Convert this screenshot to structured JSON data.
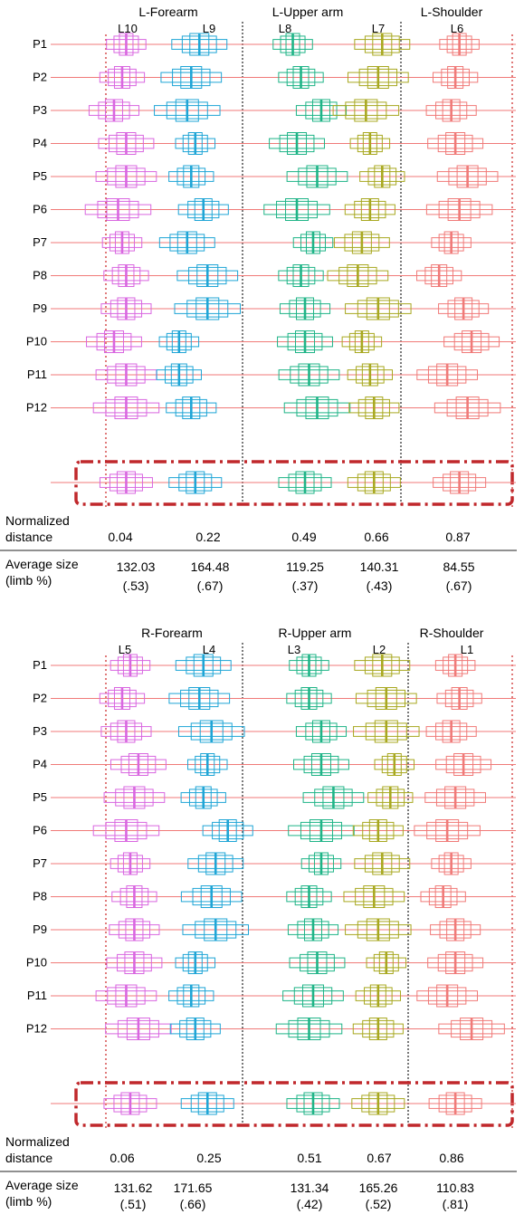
{
  "chart_data": [
    {
      "type": "box",
      "panel": "left",
      "groups": [
        {
          "label": "L-Forearm",
          "links": [
            "L10",
            "L9"
          ]
        },
        {
          "label": "L-Upper arm",
          "links": [
            "L8",
            "L7"
          ]
        },
        {
          "label": "L-Shoulder",
          "links": [
            "L6"
          ]
        }
      ],
      "participants": [
        "P1",
        "P2",
        "P3",
        "P4",
        "P5",
        "P6",
        "P7",
        "P8",
        "P9",
        "P10",
        "P11",
        "P12"
      ],
      "series": [
        {
          "name": "L10",
          "color": "#d966e0",
          "position": [
            0.05,
            0.04,
            0.02,
            0.05,
            0.05,
            0.03,
            0.04,
            0.05,
            0.05,
            0.02,
            0.05,
            0.05,
            0.05
          ]
        },
        {
          "name": "L9",
          "color": "#1fa5d6",
          "position": [
            0.23,
            0.21,
            0.2,
            0.22,
            0.21,
            0.24,
            0.2,
            0.25,
            0.25,
            0.18,
            0.18,
            0.21,
            0.22
          ]
        },
        {
          "name": "L8",
          "color": "#1fb487",
          "position": [
            0.46,
            0.48,
            0.53,
            0.47,
            0.52,
            0.47,
            0.51,
            0.48,
            0.49,
            0.49,
            0.5,
            0.52,
            0.49
          ]
        },
        {
          "name": "L7",
          "color": "#a8a820",
          "position": [
            0.68,
            0.67,
            0.64,
            0.65,
            0.68,
            0.65,
            0.63,
            0.62,
            0.67,
            0.63,
            0.65,
            0.66,
            0.66
          ]
        },
        {
          "name": "L6",
          "color": "#f07a78",
          "position": [
            0.87,
            0.86,
            0.85,
            0.86,
            0.89,
            0.87,
            0.85,
            0.82,
            0.88,
            0.9,
            0.84,
            0.89,
            0.87
          ]
        }
      ],
      "normalized_distance": [
        "0.04",
        "0.22",
        "0.49",
        "0.66",
        "0.87"
      ],
      "average_size": [
        "132.03",
        "164.48",
        "119.25",
        "140.31",
        "84.55"
      ],
      "average_size_fraction": [
        "(.53)",
        "(.67)",
        "(.37)",
        "(.43)",
        "(.67)"
      ]
    },
    {
      "type": "box",
      "panel": "right",
      "groups": [
        {
          "label": "R-Forearm",
          "links": [
            "L5",
            "L4"
          ]
        },
        {
          "label": "R-Upper arm",
          "links": [
            "L3",
            "L2"
          ]
        },
        {
          "label": "R-Shoulder",
          "links": [
            "L1"
          ]
        }
      ],
      "participants": [
        "P1",
        "P2",
        "P3",
        "P4",
        "P5",
        "P6",
        "P7",
        "P8",
        "P9",
        "P10",
        "P11",
        "P12"
      ],
      "series": [
        {
          "name": "L5",
          "color": "#d966e0",
          "position": [
            0.06,
            0.04,
            0.05,
            0.08,
            0.07,
            0.05,
            0.06,
            0.07,
            0.07,
            0.07,
            0.05,
            0.08,
            0.06
          ]
        },
        {
          "name": "L4",
          "color": "#1fa5d6",
          "position": [
            0.24,
            0.23,
            0.26,
            0.25,
            0.24,
            0.3,
            0.27,
            0.26,
            0.27,
            0.22,
            0.21,
            0.22,
            0.25
          ]
        },
        {
          "name": "L3",
          "color": "#1fb487",
          "position": [
            0.5,
            0.5,
            0.53,
            0.53,
            0.56,
            0.53,
            0.53,
            0.5,
            0.51,
            0.52,
            0.51,
            0.5,
            0.51
          ]
        },
        {
          "name": "L2",
          "color": "#a8a820",
          "position": [
            0.68,
            0.69,
            0.69,
            0.71,
            0.7,
            0.67,
            0.68,
            0.66,
            0.67,
            0.69,
            0.67,
            0.67,
            0.67
          ]
        },
        {
          "name": "L1",
          "color": "#f07a78",
          "position": [
            0.86,
            0.87,
            0.85,
            0.88,
            0.86,
            0.84,
            0.85,
            0.83,
            0.86,
            0.86,
            0.84,
            0.9,
            0.86
          ]
        }
      ],
      "normalized_distance": [
        "0.06",
        "0.25",
        "0.51",
        "0.67",
        "0.86"
      ],
      "average_size": [
        "131.62",
        "171.65",
        "131.34",
        "165.26",
        "110.83"
      ],
      "average_size_fraction": [
        "(.51)",
        "(.66)",
        "(.42)",
        "(.52)",
        "(.81)"
      ]
    }
  ],
  "labels": {
    "normalized_line1": "Normalized",
    "normalized_line2": "distance",
    "avg_line1": "Average size",
    "avg_line2": "(limb %)"
  },
  "colors": {
    "axis_line": "#f07a78",
    "boundary": "#cc2222",
    "summary_frame": "#c0282c",
    "divider": "#222222"
  }
}
